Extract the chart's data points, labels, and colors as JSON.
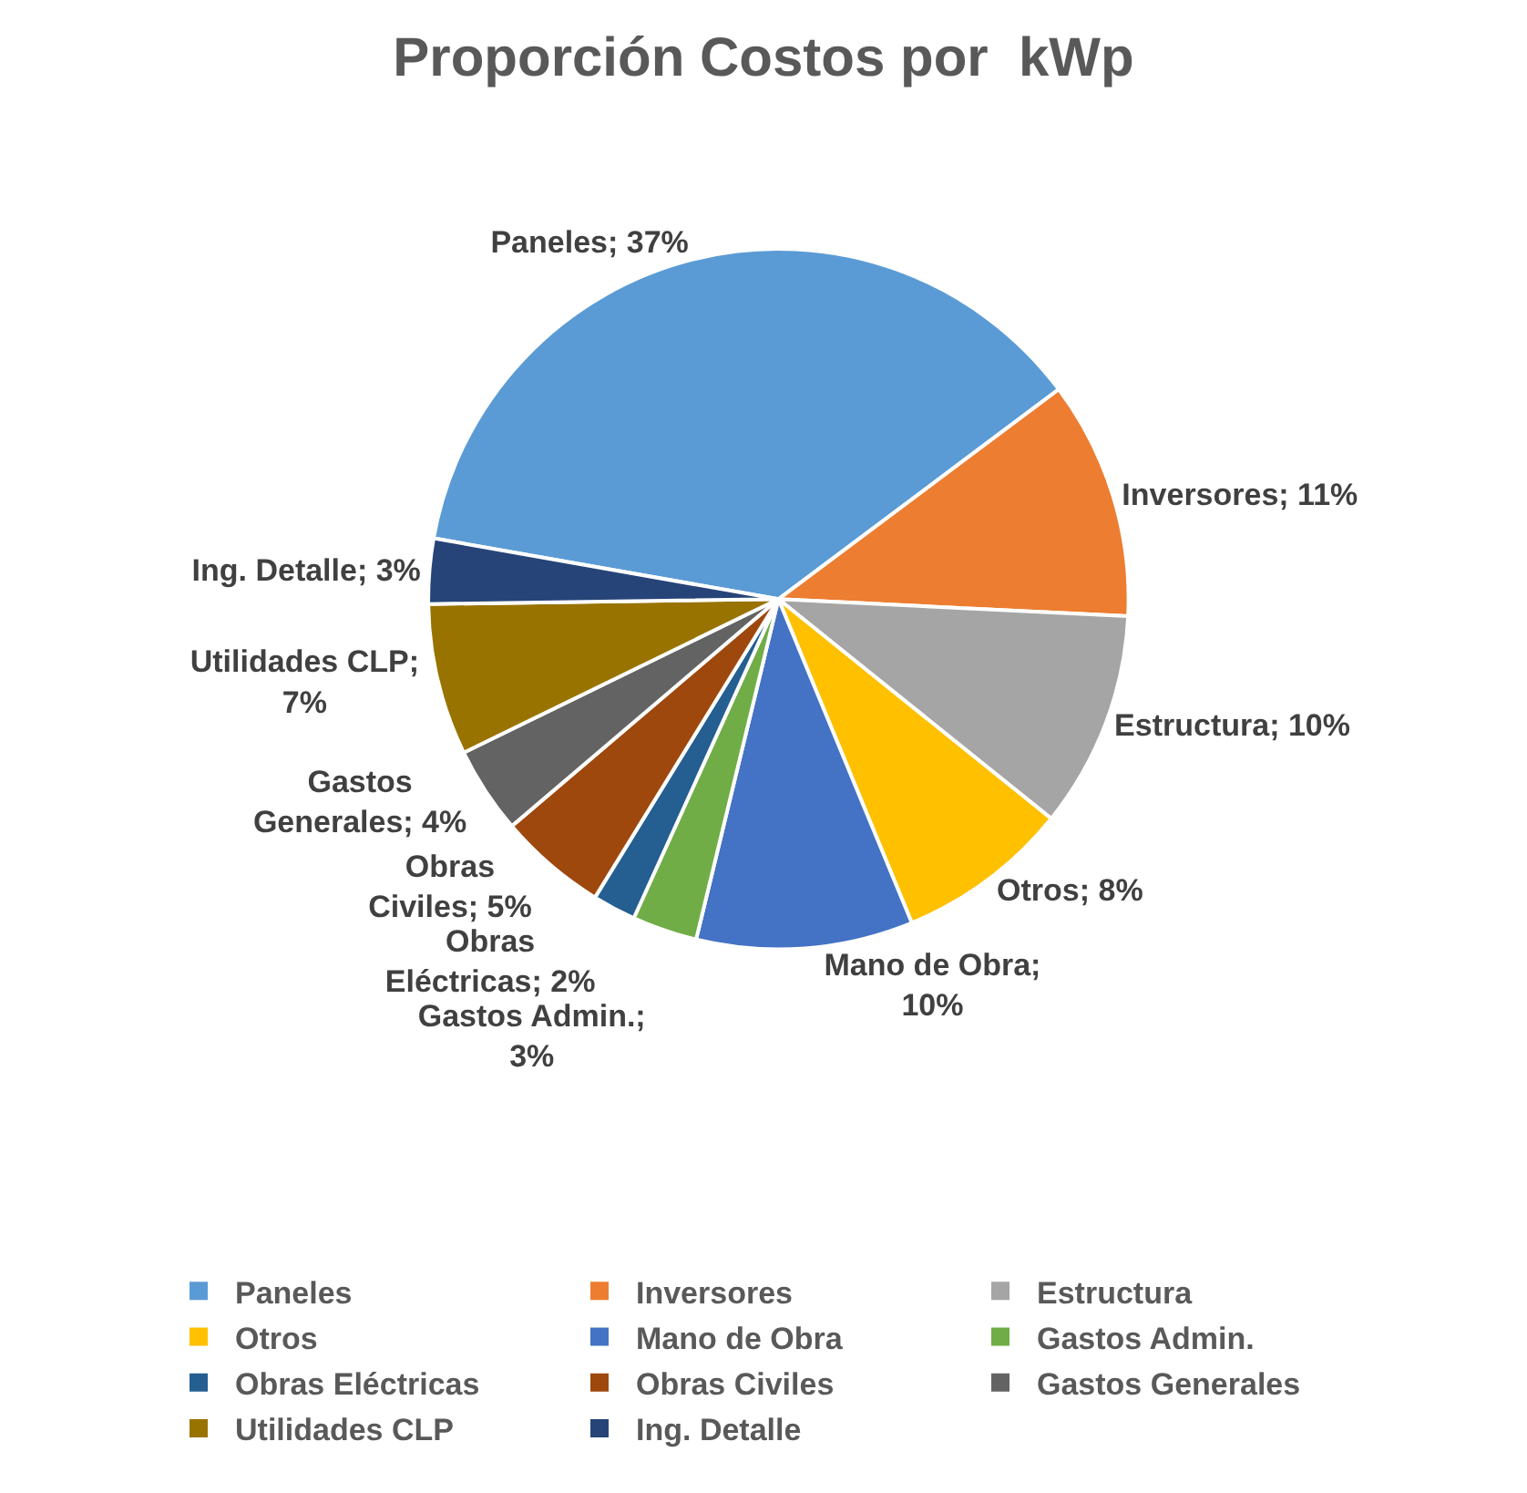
{
  "chart_data": {
    "type": "pie",
    "title": "Proporción Costos por  kWp",
    "categories": [
      "Paneles",
      "Inversores",
      "Estructura",
      "Otros",
      "Mano de Obra",
      "Gastos Admin.",
      "Obras Eléctricas",
      "Obras Civiles",
      "Gastos Generales",
      "Utilidades CLP",
      "Ing. Detalle"
    ],
    "values": [
      37,
      11,
      10,
      8,
      10,
      3,
      2,
      5,
      4,
      7,
      3
    ],
    "value_labels": [
      "Paneles; 37%",
      "Inversores; 11%",
      "Estructura; 10%",
      "Otros; 8%",
      "Mano de Obra;\n10%",
      "Gastos Admin.;\n3%",
      "Obras\nEléctricas; 2%",
      "Obras\nCiviles; 5%",
      "Gastos\nGenerales; 4%",
      "Utilidades CLP;\n7%",
      "Ing. Detalle; 3%"
    ],
    "colors": [
      "#5b9bd5",
      "#ed7d31",
      "#a5a5a5",
      "#ffc000",
      "#4472c4",
      "#70ad47",
      "#255e91",
      "#9e480e",
      "#636363",
      "#997300",
      "#264478"
    ],
    "legend": "bottom"
  }
}
